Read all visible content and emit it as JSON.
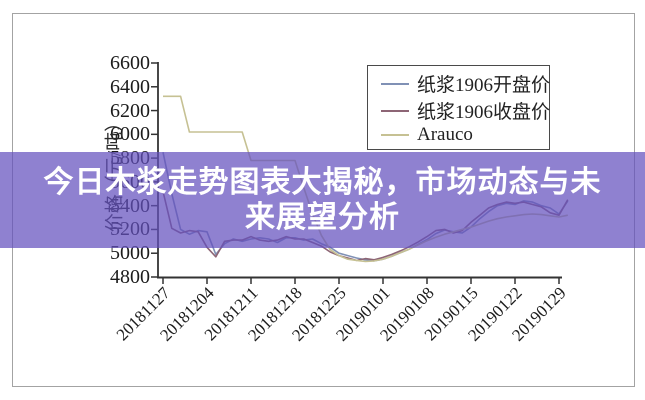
{
  "page": {
    "banner": {
      "line1": "今日木浆走势图表大揭秘，市场动态与未",
      "line2": "来展望分析",
      "bg_color": "rgba(100,80,190,0.72)",
      "text_color": "#ffffff"
    },
    "frame_border_color": "#a3a3a3",
    "axis_color": "#333333"
  },
  "chart_data": {
    "type": "line",
    "title": "",
    "xlabel": "",
    "ylabel": "价格（元/吨）",
    "ylim": [
      4800,
      6600
    ],
    "yticks": [
      4800,
      5000,
      5200,
      5400,
      5600,
      5800,
      6000,
      6200,
      6400,
      6600
    ],
    "grid": false,
    "legend_position": "upper right inside",
    "xtick_every": 5,
    "xtick_labels": [
      "20181127",
      "20181204",
      "20181211",
      "20181218",
      "20181225",
      "20190101",
      "20190108",
      "20190115",
      "20190122",
      "20190129"
    ],
    "x": [
      "20181127",
      "20181128",
      "20181129",
      "20181130",
      "20181203",
      "20181204",
      "20181205",
      "20181206",
      "20181207",
      "20181210",
      "20181211",
      "20181212",
      "20181213",
      "20181214",
      "20181217",
      "20181218",
      "20181219",
      "20181220",
      "20181221",
      "20181224",
      "20181225",
      "20181226",
      "20181227",
      "20181228",
      "20181231",
      "20190101",
      "20190102",
      "20190103",
      "20190104",
      "20190107",
      "20190108",
      "20190109",
      "20190110",
      "20190111",
      "20190114",
      "20190115",
      "20190116",
      "20190117",
      "20190118",
      "20190121",
      "20190122",
      "20190123",
      "20190124",
      "20190125",
      "20190128",
      "20190129",
      "20190130"
    ],
    "series": [
      {
        "name": "纸浆1906开盘价",
        "color": "#8091b5",
        "values": [
          5850,
          5500,
          5200,
          5160,
          5190,
          5180,
          4990,
          5080,
          5120,
          5100,
          5120,
          5130,
          5120,
          5090,
          5130,
          5130,
          5110,
          5120,
          5080,
          5050,
          5000,
          4980,
          4960,
          4945,
          4935,
          4950,
          4975,
          5005,
          5035,
          5075,
          5115,
          5165,
          5195,
          5180,
          5170,
          5220,
          5290,
          5350,
          5400,
          5420,
          5410,
          5440,
          5430,
          5400,
          5380,
          5330,
          5440
        ]
      },
      {
        "name": "纸浆1906收盘价",
        "color": "#8d6575",
        "values": [
          5520,
          5210,
          5170,
          5190,
          5180,
          5050,
          4970,
          5100,
          5110,
          5110,
          5140,
          5110,
          5100,
          5110,
          5140,
          5120,
          5120,
          5090,
          5060,
          5010,
          4980,
          4960,
          4940,
          4955,
          4945,
          4965,
          4990,
          5020,
          5055,
          5095,
          5140,
          5190,
          5200,
          5170,
          5190,
          5260,
          5320,
          5380,
          5410,
          5430,
          5420,
          5430,
          5410,
          5390,
          5340,
          5320,
          5450
        ]
      },
      {
        "name": "Arauco",
        "color": "#c6c193",
        "values": [
          6320,
          6320,
          6320,
          6020,
          6020,
          6020,
          6020,
          6020,
          6020,
          6020,
          5780,
          5780,
          5780,
          5780,
          5780,
          5780,
          5550,
          5330,
          5150,
          5030,
          4980,
          4950,
          4940,
          4930,
          4935,
          4950,
          4975,
          5005,
          5035,
          5070,
          5105,
          5135,
          5160,
          5180,
          5200,
          5220,
          5245,
          5270,
          5290,
          5305,
          5315,
          5325,
          5330,
          5325,
          5315,
          5305,
          5320
        ]
      }
    ]
  }
}
